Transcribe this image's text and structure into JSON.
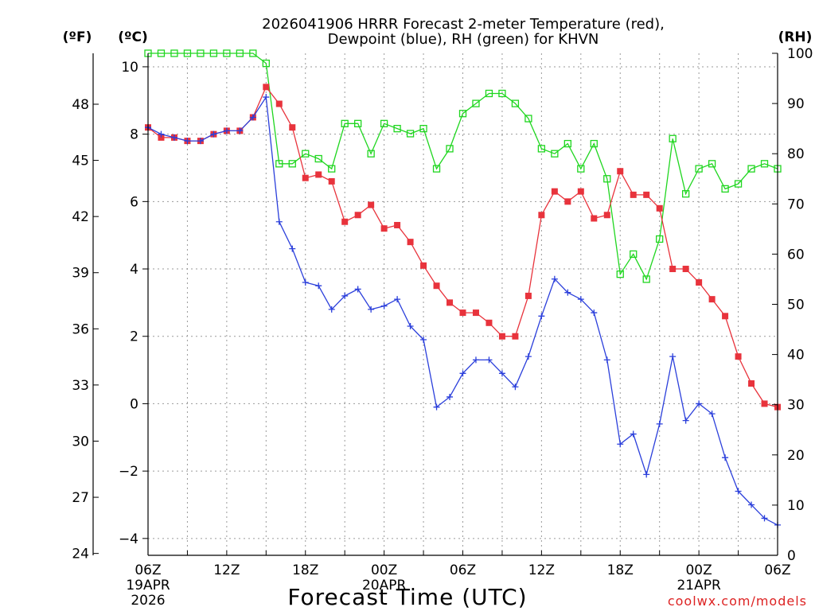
{
  "title_line1": "2026041906 HRRR Forecast 2-meter Temperature (red),",
  "title_line2": "Dewpoint (blue), RH (green) for KHVN",
  "unit_f": "(ºF)",
  "unit_c": "(ºC)",
  "unit_rh": "(RH)",
  "xlabel": "Forecast Time (UTC)",
  "watermark": "coolwx.com/models",
  "colors": {
    "temperature": "#e8333c",
    "dewpoint": "#2b3fdb",
    "rh": "#1fd61f",
    "grid": "#9a9a9a",
    "axis": "#000000",
    "watermark": "#dd2222"
  },
  "chart_data": {
    "type": "line",
    "x": [
      0,
      1,
      2,
      3,
      4,
      5,
      6,
      7,
      8,
      9,
      10,
      11,
      12,
      13,
      14,
      15,
      16,
      17,
      18,
      19,
      20,
      21,
      22,
      23,
      24,
      25,
      26,
      27,
      28,
      29,
      30,
      31,
      32,
      33,
      34,
      35,
      36,
      37,
      38,
      39,
      40,
      41,
      42,
      43,
      44,
      45,
      46,
      47,
      48
    ],
    "x_ticks": [
      {
        "x": 0,
        "label": "06Z",
        "sub1": "19APR",
        "sub2": "2026"
      },
      {
        "x": 6,
        "label": "12Z",
        "sub1": "",
        "sub2": ""
      },
      {
        "x": 12,
        "label": "18Z",
        "sub1": "",
        "sub2": ""
      },
      {
        "x": 18,
        "label": "00Z",
        "sub1": "20APR",
        "sub2": ""
      },
      {
        "x": 24,
        "label": "06Z",
        "sub1": "",
        "sub2": ""
      },
      {
        "x": 30,
        "label": "12Z",
        "sub1": "",
        "sub2": ""
      },
      {
        "x": 36,
        "label": "18Z",
        "sub1": "",
        "sub2": ""
      },
      {
        "x": 42,
        "label": "00Z",
        "sub1": "21APR",
        "sub2": ""
      },
      {
        "x": 48,
        "label": "06Z",
        "sub1": "",
        "sub2": ""
      }
    ],
    "xlim": [
      0,
      48
    ],
    "ylim_c": [
      -4.5,
      10.4
    ],
    "y_ticks_c": [
      -4,
      -2,
      0,
      2,
      4,
      6,
      8,
      10
    ],
    "y_tick_labels_c": [
      "−4",
      "−2",
      "0",
      "2",
      "4",
      "6",
      "8",
      "10"
    ],
    "y_ticks_f": [
      24,
      27,
      30,
      33,
      36,
      39,
      42,
      45,
      48
    ],
    "ylim_rh": [
      0,
      100
    ],
    "y_ticks_rh": [
      0,
      10,
      20,
      30,
      40,
      50,
      60,
      70,
      80,
      90,
      100
    ],
    "grid": true,
    "series": [
      {
        "name": "Temperature (°C)",
        "color": "#e8333c",
        "marker": "square-filled",
        "values": [
          8.2,
          7.9,
          7.9,
          7.8,
          7.8,
          8.0,
          8.1,
          8.1,
          8.5,
          9.4,
          8.9,
          8.2,
          6.7,
          6.8,
          6.6,
          5.4,
          5.6,
          5.9,
          5.2,
          5.3,
          4.8,
          4.1,
          3.5,
          3.0,
          2.7,
          2.7,
          2.4,
          2.0,
          2.0,
          3.2,
          5.6,
          6.3,
          6.0,
          6.3,
          5.5,
          5.6,
          6.9,
          6.2,
          6.2,
          5.8,
          4.0,
          4.0,
          3.6,
          3.1,
          2.6,
          1.4,
          0.6,
          0.0,
          -0.1
        ]
      },
      {
        "name": "Dewpoint (°C)",
        "color": "#2b3fdb",
        "marker": "plus",
        "values": [
          8.2,
          8.0,
          7.9,
          7.8,
          7.8,
          8.0,
          8.1,
          8.1,
          8.5,
          9.1,
          5.4,
          4.6,
          3.6,
          3.5,
          2.8,
          3.2,
          3.4,
          2.8,
          2.9,
          3.1,
          2.3,
          1.9,
          -0.1,
          0.2,
          0.9,
          1.3,
          1.3,
          0.9,
          0.5,
          1.4,
          2.6,
          3.7,
          3.3,
          3.1,
          2.7,
          1.3,
          -1.2,
          -0.9,
          -2.1,
          -0.6,
          1.4,
          -0.5,
          0.0,
          -0.3,
          -1.6,
          -2.6,
          -3.0,
          -3.4,
          -3.6
        ]
      },
      {
        "name": "RH (%)",
        "color": "#1fd61f",
        "marker": "square-open",
        "values": [
          100,
          100,
          100,
          100,
          100,
          100,
          100,
          100,
          100,
          98,
          78,
          78,
          80,
          79,
          77,
          86,
          86,
          80,
          86,
          85,
          84,
          85,
          77,
          81,
          88,
          90,
          92,
          92,
          90,
          87,
          81,
          80,
          82,
          77,
          82,
          75,
          56,
          60,
          55,
          63,
          83,
          72,
          77,
          78,
          73,
          74,
          77,
          78,
          77
        ]
      }
    ]
  }
}
